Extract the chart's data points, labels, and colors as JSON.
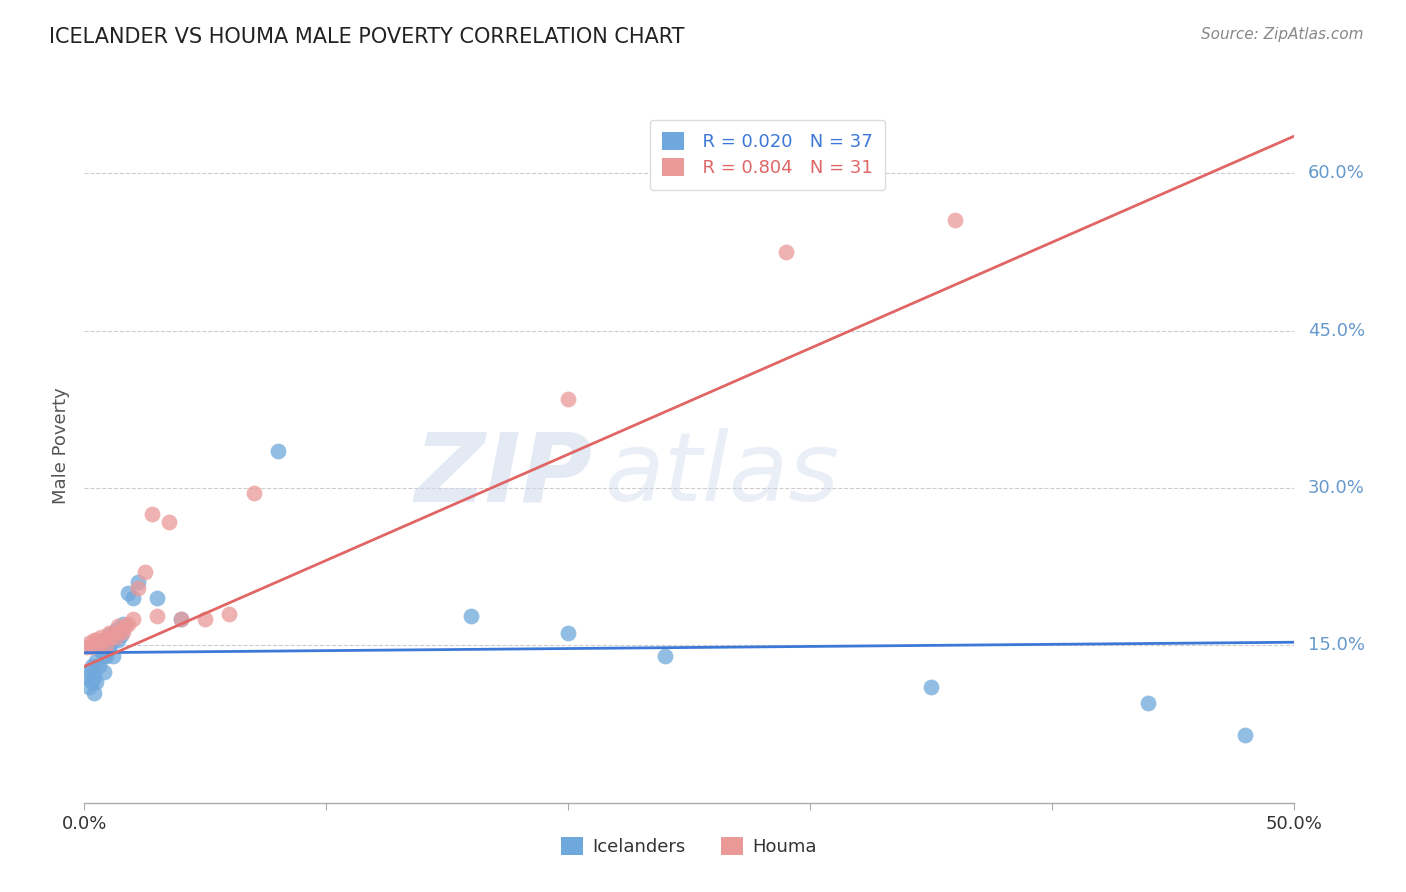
{
  "title": "ICELANDER VS HOUMA MALE POVERTY CORRELATION CHART",
  "source": "Source: ZipAtlas.com",
  "ylabel_label": "Male Poverty",
  "xlim": [
    0.0,
    0.5
  ],
  "ylim": [
    0.0,
    0.68
  ],
  "ytick_labels": [
    "15.0%",
    "30.0%",
    "45.0%",
    "60.0%"
  ],
  "ytick_values": [
    0.15,
    0.3,
    0.45,
    0.6
  ],
  "grid_yticks": [
    0.15,
    0.3,
    0.45,
    0.6
  ],
  "color_blue": "#6fa8dc",
  "color_pink": "#ea9999",
  "color_blue_line": "#3c78d8",
  "color_pink_line": "#e06666",
  "color_ytick_labels": "#6699cc",
  "icelander_x": [
    0.001,
    0.002,
    0.002,
    0.003,
    0.003,
    0.004,
    0.004,
    0.005,
    0.005,
    0.006,
    0.006,
    0.007,
    0.008,
    0.008,
    0.009,
    0.009,
    0.01,
    0.01,
    0.011,
    0.012,
    0.012,
    0.013,
    0.014,
    0.015,
    0.016,
    0.018,
    0.02,
    0.022,
    0.03,
    0.04,
    0.08,
    0.16,
    0.2,
    0.24,
    0.35,
    0.44,
    0.48
  ],
  "icelander_y": [
    0.12,
    0.125,
    0.11,
    0.13,
    0.115,
    0.105,
    0.12,
    0.135,
    0.115,
    0.15,
    0.13,
    0.145,
    0.14,
    0.125,
    0.155,
    0.14,
    0.16,
    0.148,
    0.152,
    0.155,
    0.14,
    0.165,
    0.155,
    0.16,
    0.17,
    0.2,
    0.195,
    0.21,
    0.195,
    0.175,
    0.335,
    0.178,
    0.162,
    0.14,
    0.11,
    0.095,
    0.065
  ],
  "houma_x": [
    0.001,
    0.002,
    0.003,
    0.004,
    0.005,
    0.006,
    0.007,
    0.008,
    0.009,
    0.01,
    0.011,
    0.012,
    0.013,
    0.014,
    0.015,
    0.016,
    0.017,
    0.018,
    0.02,
    0.022,
    0.025,
    0.028,
    0.03,
    0.035,
    0.04,
    0.05,
    0.06,
    0.07,
    0.2,
    0.29,
    0.36
  ],
  "houma_y": [
    0.148,
    0.152,
    0.148,
    0.155,
    0.155,
    0.15,
    0.158,
    0.155,
    0.15,
    0.162,
    0.158,
    0.162,
    0.158,
    0.168,
    0.165,
    0.163,
    0.168,
    0.17,
    0.175,
    0.205,
    0.22,
    0.275,
    0.178,
    0.268,
    0.175,
    0.175,
    0.18,
    0.295,
    0.385,
    0.525,
    0.555
  ],
  "watermark_zip": "ZIP",
  "watermark_atlas": "atlas",
  "background_color": "#ffffff"
}
